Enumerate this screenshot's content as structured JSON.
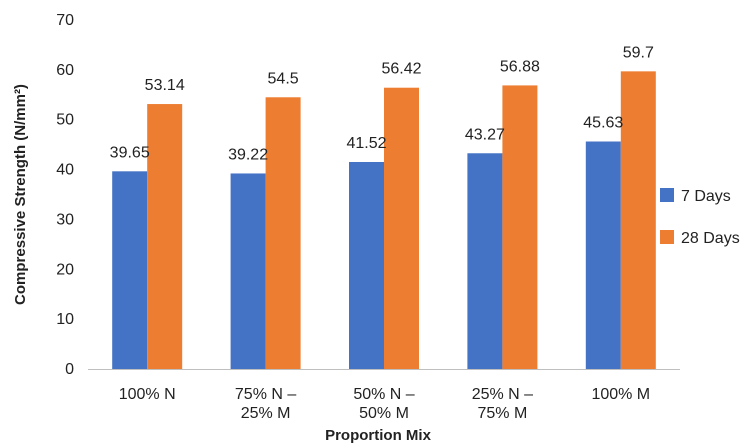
{
  "chart_data": {
    "type": "bar",
    "title": "",
    "xlabel": "Proportion Mix",
    "ylabel": "Compressive Strength (N/mm²)",
    "ylim": [
      0,
      70
    ],
    "yticks": [
      0,
      10,
      20,
      30,
      40,
      50,
      60,
      70
    ],
    "grid": false,
    "legend_position": "right",
    "categories": [
      [
        "100% N"
      ],
      [
        "75% N –",
        "25% M"
      ],
      [
        "50% N –",
        "50% M"
      ],
      [
        "25% N –",
        "75% M"
      ],
      [
        "100% M"
      ]
    ],
    "series": [
      {
        "name": "7 Days",
        "color": "#4472C4",
        "values": [
          39.65,
          39.22,
          41.52,
          43.27,
          45.63
        ],
        "labels": [
          "39.65",
          "39.22",
          "41.52",
          "43.27",
          "45.63"
        ]
      },
      {
        "name": "28 Days",
        "color": "#ED7D31",
        "values": [
          53.14,
          54.5,
          56.42,
          56.88,
          59.7
        ],
        "labels": [
          "53.14",
          "54.5",
          "56.42",
          "56.88",
          "59.7"
        ]
      }
    ]
  }
}
